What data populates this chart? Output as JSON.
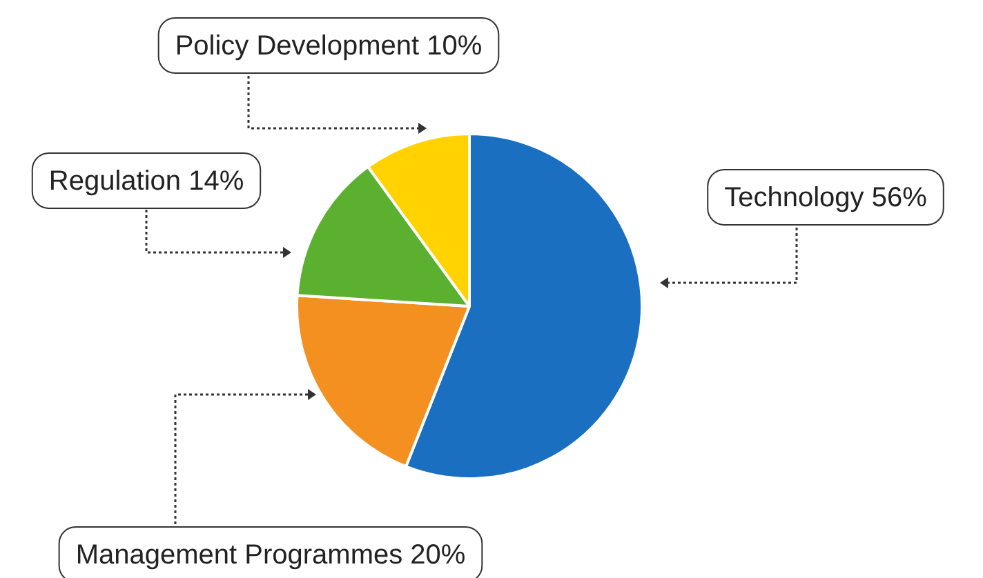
{
  "chart_data": {
    "type": "pie",
    "categories": [
      "Technology",
      "Management Programmes",
      "Regulation",
      "Policy Development"
    ],
    "values": [
      56,
      20,
      14,
      10
    ],
    "colors": [
      "#1a6fc0",
      "#f39020",
      "#5cb030",
      "#ffd200"
    ],
    "value_labels": [
      "56%",
      "20%",
      "14%",
      "10%"
    ]
  }
}
